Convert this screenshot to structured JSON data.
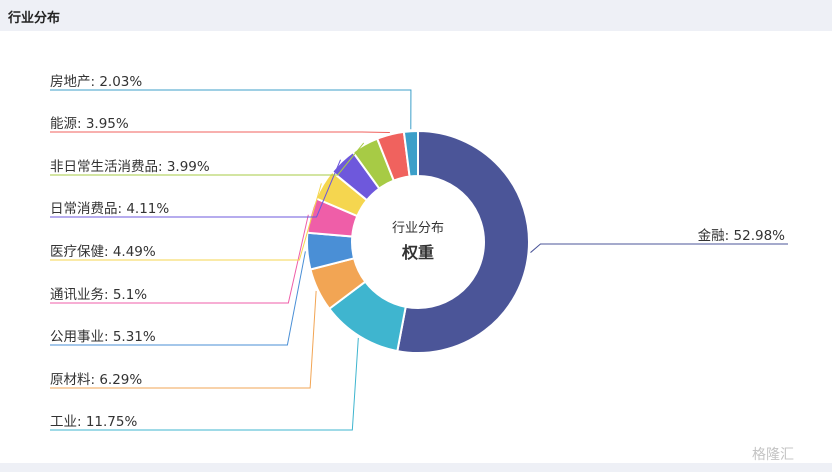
{
  "header": {
    "title": "行业分布"
  },
  "watermark": "格隆汇",
  "chart_data": {
    "type": "pie",
    "center_title": "行业分布",
    "center_subtitle": "权重",
    "slices": [
      {
        "name": "金融",
        "label": "金融: 52.98%",
        "value": 52.98,
        "color": "#4b5598"
      },
      {
        "name": "工业",
        "label": "工业: 11.75%",
        "value": 11.75,
        "color": "#3fb5cf"
      },
      {
        "name": "原材料",
        "label": "原材料: 6.29%",
        "value": 6.29,
        "color": "#f2a554"
      },
      {
        "name": "公用事业",
        "label": "公用事业: 5.31%",
        "value": 5.31,
        "color": "#4a8fd6"
      },
      {
        "name": "通讯业务",
        "label": "通讯业务: 5.1%",
        "value": 5.1,
        "color": "#ef5ea8"
      },
      {
        "name": "医疗保健",
        "label": "医疗保健: 4.49%",
        "value": 4.49,
        "color": "#f5d64f"
      },
      {
        "name": "日常消费品",
        "label": "日常消费品: 4.11%",
        "value": 4.11,
        "color": "#6e58dc"
      },
      {
        "name": "非日常生活消费品",
        "label": "非日常生活消费品: 3.99%",
        "value": 3.99,
        "color": "#a7cb45"
      },
      {
        "name": "能源",
        "label": "能源: 3.95%",
        "value": 3.95,
        "color": "#f0625e"
      },
      {
        "name": "房地产",
        "label": "房地产: 2.03%",
        "value": 2.03,
        "color": "#3c9fc9"
      }
    ]
  }
}
